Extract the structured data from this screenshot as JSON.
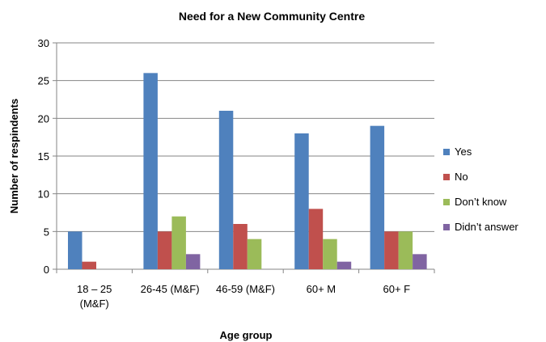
{
  "chart_data": {
    "type": "bar",
    "title": "Need for a New Community Centre",
    "xlabel": "Age group",
    "ylabel": "Number of respindents",
    "categories": [
      [
        "18 – 25",
        "(M&F)"
      ],
      [
        "26-45 (M&F)"
      ],
      [
        "46-59 (M&F)"
      ],
      [
        "60+ M"
      ],
      [
        "60+ F"
      ]
    ],
    "series": [
      {
        "name": "Yes",
        "color": "#4F81BD",
        "values": [
          5,
          26,
          21,
          18,
          19
        ]
      },
      {
        "name": "No",
        "color": "#C0504D",
        "values": [
          1,
          5,
          6,
          8,
          5
        ]
      },
      {
        "name": "Don’t know",
        "color": "#9BBB59",
        "values": [
          0,
          7,
          4,
          4,
          5
        ]
      },
      {
        "name": "Didn’t answer",
        "color": "#8064A2",
        "values": [
          0,
          2,
          0,
          1,
          2
        ]
      }
    ],
    "ylim": [
      0,
      30
    ],
    "yticks": [
      0,
      5,
      10,
      15,
      20,
      25,
      30
    ],
    "grid": true,
    "legend_position": "right"
  }
}
